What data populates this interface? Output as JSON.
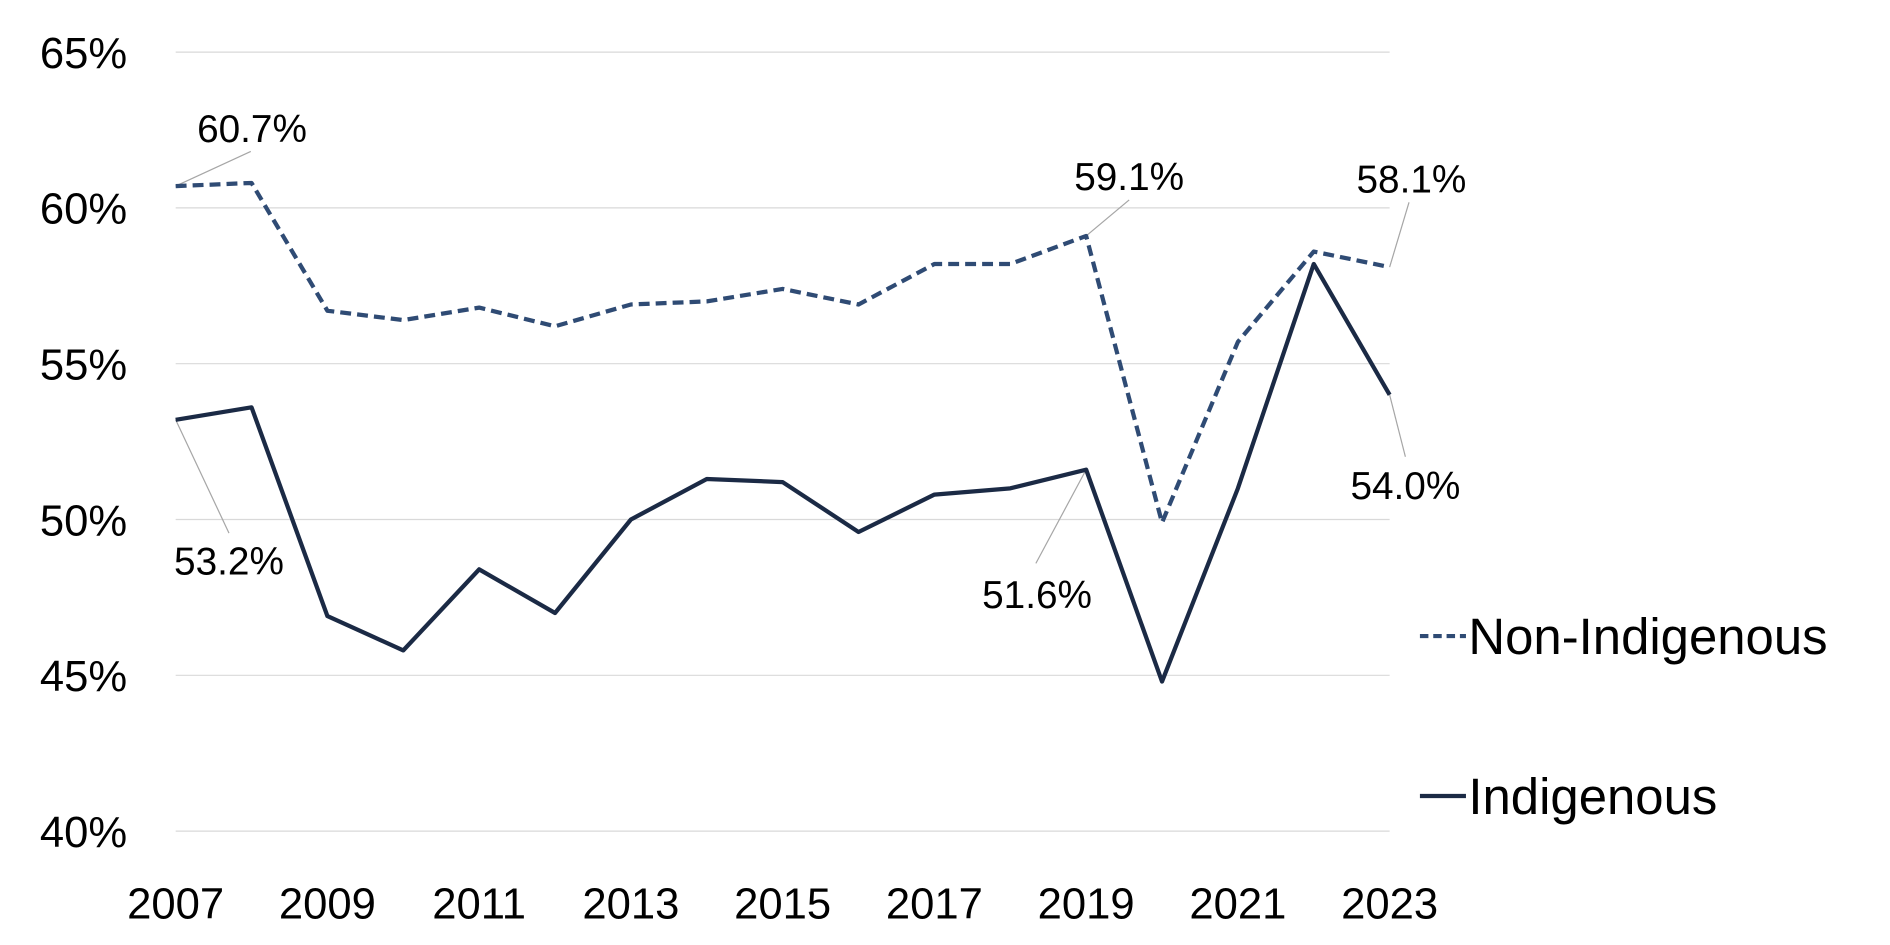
{
  "chart_data": {
    "type": "line",
    "title": "",
    "xlabel": "",
    "ylabel": "",
    "x": [
      2007,
      2008,
      2009,
      2010,
      2011,
      2012,
      2013,
      2014,
      2015,
      2016,
      2017,
      2018,
      2019,
      2020,
      2021,
      2022,
      2023
    ],
    "x_tick_labels": [
      "2007",
      "2009",
      "2011",
      "2013",
      "2015",
      "2017",
      "2019",
      "2021",
      "2023"
    ],
    "y_tick_labels": [
      "40%",
      "45%",
      "50%",
      "55%",
      "60%",
      "65%"
    ],
    "ylim": [
      40,
      65
    ],
    "grid": true,
    "legend_position": "right",
    "series": [
      {
        "name": "Non-Indigenous",
        "style": "dashed",
        "color": "#2f4b74",
        "values": [
          60.7,
          60.8,
          56.7,
          56.4,
          56.8,
          56.2,
          56.9,
          57.0,
          57.4,
          56.9,
          58.2,
          58.2,
          59.1,
          49.9,
          55.7,
          58.6,
          58.1
        ]
      },
      {
        "name": "Indigenous",
        "style": "solid",
        "color": "#1b2a45",
        "values": [
          53.2,
          53.6,
          46.9,
          45.8,
          48.4,
          47.0,
          50.0,
          51.3,
          51.2,
          49.6,
          50.8,
          51.0,
          51.6,
          44.8,
          51.0,
          58.2,
          54.0
        ]
      }
    ],
    "annotations": [
      {
        "series": "Non-Indigenous",
        "x": 2007,
        "text": "60.7%"
      },
      {
        "series": "Non-Indigenous",
        "x": 2019,
        "text": "59.1%"
      },
      {
        "series": "Non-Indigenous",
        "x": 2023,
        "text": "58.1%"
      },
      {
        "series": "Indigenous",
        "x": 2007,
        "text": "53.2%"
      },
      {
        "series": "Indigenous",
        "x": 2019,
        "text": "51.6%"
      },
      {
        "series": "Indigenous",
        "x": 2023,
        "text": "54.0%"
      }
    ]
  }
}
